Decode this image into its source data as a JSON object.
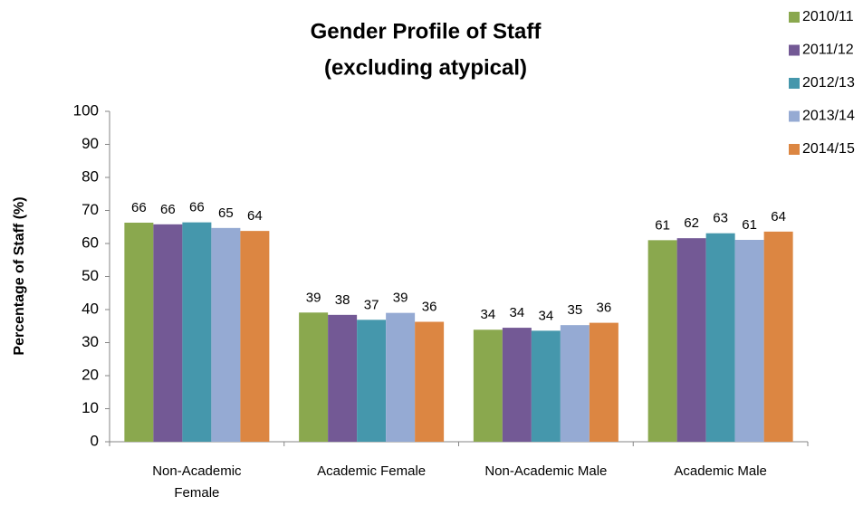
{
  "chart_data": {
    "type": "bar",
    "title": "Gender Profile of Staff",
    "subtitle": "(excluding atypical)",
    "y_label": "Percentage of Staff (%)",
    "categories": [
      "Non-Academic Female",
      "Academic Female",
      "Non-Academic Male",
      "Academic Male"
    ],
    "series": [
      {
        "name": "2010/11",
        "color": "#8aa84e",
        "values": [
          66.3,
          39.1,
          33.9,
          61.0
        ],
        "value_labels": [
          "66",
          "39",
          "34",
          "61"
        ]
      },
      {
        "name": "2011/12",
        "color": "#735995",
        "values": [
          65.8,
          38.4,
          34.5,
          61.6
        ],
        "value_labels": [
          "66",
          "38",
          "34",
          "62"
        ]
      },
      {
        "name": "2012/13",
        "color": "#4597ac",
        "values": [
          66.4,
          36.9,
          33.6,
          63.1
        ],
        "value_labels": [
          "66",
          "37",
          "34",
          "63"
        ]
      },
      {
        "name": "2013/14",
        "color": "#95aad3",
        "values": [
          64.7,
          39.0,
          35.3,
          61.1
        ],
        "value_labels": [
          "65",
          "39",
          "35",
          "61"
        ]
      },
      {
        "name": "2014/15",
        "color": "#dc8642",
        "values": [
          63.8,
          36.3,
          36.0,
          63.6
        ],
        "value_labels": [
          "64",
          "36",
          "36",
          "64"
        ]
      }
    ],
    "ylim": [
      0,
      100
    ],
    "yticks": [
      0,
      10,
      20,
      30,
      40,
      50,
      60,
      70,
      80,
      90,
      100
    ],
    "grid": false,
    "legend": "top-right"
  }
}
